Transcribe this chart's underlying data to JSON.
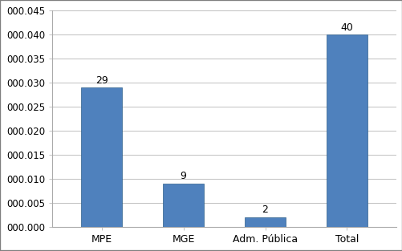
{
  "categories": [
    "MPE",
    "MGE",
    "Adm. Pública",
    "Total"
  ],
  "values": [
    0.029,
    0.009,
    0.002,
    0.04
  ],
  "labels": [
    "29",
    "9",
    "2",
    "40"
  ],
  "bar_color": "#4f81bd",
  "bar_edge_color": "#2e5f8a",
  "ylim": [
    0,
    0.045
  ],
  "yticks": [
    0.0,
    0.005,
    0.01,
    0.015,
    0.02,
    0.025,
    0.03,
    0.035,
    0.04,
    0.045
  ],
  "background_color": "#ffffff",
  "grid_color": "#c0c0c0",
  "border_color": "#7f7f7f",
  "bar_width": 0.5,
  "label_fontsize": 9,
  "tick_fontsize": 8.5,
  "cat_fontsize": 9
}
